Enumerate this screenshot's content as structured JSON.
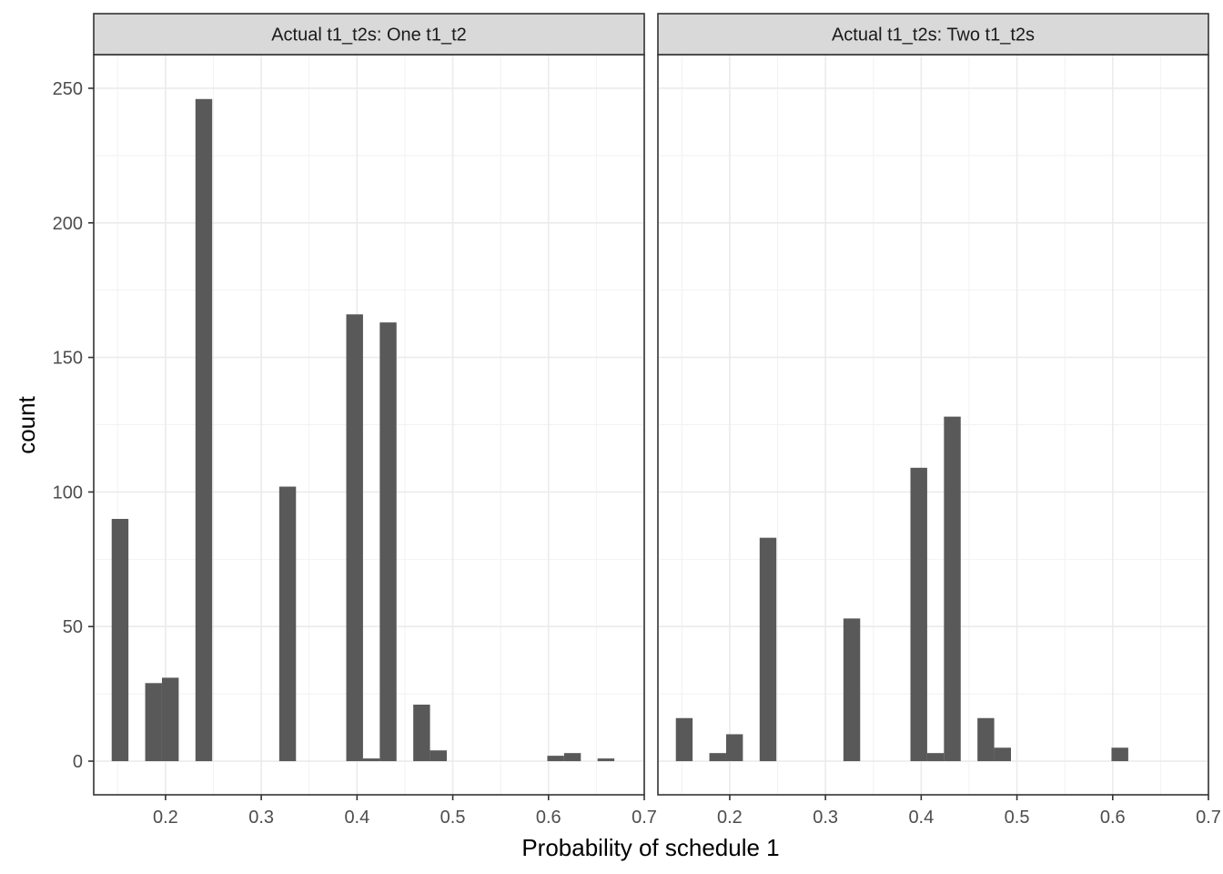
{
  "chart_data": {
    "type": "bar",
    "xlabel": "Probability of schedule 1",
    "ylabel": "count",
    "xlim": [
      0.125,
      0.7
    ],
    "ylim": [
      -12.5,
      262.5
    ],
    "x_ticks": [
      0.2,
      0.3,
      0.4,
      0.5,
      0.6,
      0.7
    ],
    "x_tick_labels": [
      "0.2",
      "0.3",
      "0.4",
      "0.5",
      "0.6",
      "0.7"
    ],
    "y_ticks": [
      0,
      50,
      100,
      150,
      200,
      250
    ],
    "y_tick_labels": [
      "0",
      "50",
      "100",
      "150",
      "200",
      "250"
    ],
    "bin_width": 0.0175,
    "grid": true,
    "bar_color": "#595959",
    "panels": [
      {
        "label": "Actual t1_t2s: One t1_t2",
        "bars": [
          {
            "x": 0.1525,
            "count": 90
          },
          {
            "x": 0.1875,
            "count": 29
          },
          {
            "x": 0.205,
            "count": 31
          },
          {
            "x": 0.24,
            "count": 246
          },
          {
            "x": 0.3275,
            "count": 102
          },
          {
            "x": 0.3975,
            "count": 166
          },
          {
            "x": 0.415,
            "count": 1
          },
          {
            "x": 0.4325,
            "count": 163
          },
          {
            "x": 0.4675,
            "count": 21
          },
          {
            "x": 0.485,
            "count": 4
          },
          {
            "x": 0.6075,
            "count": 2
          },
          {
            "x": 0.625,
            "count": 3
          },
          {
            "x": 0.66,
            "count": 1
          }
        ]
      },
      {
        "label": "Actual t1_t2s: Two t1_t2s",
        "bars": [
          {
            "x": 0.1525,
            "count": 16
          },
          {
            "x": 0.1875,
            "count": 3
          },
          {
            "x": 0.205,
            "count": 10
          },
          {
            "x": 0.24,
            "count": 83
          },
          {
            "x": 0.3275,
            "count": 53
          },
          {
            "x": 0.3975,
            "count": 109
          },
          {
            "x": 0.415,
            "count": 3
          },
          {
            "x": 0.4325,
            "count": 128
          },
          {
            "x": 0.4675,
            "count": 16
          },
          {
            "x": 0.485,
            "count": 5
          },
          {
            "x": 0.6075,
            "count": 5
          }
        ]
      }
    ]
  }
}
